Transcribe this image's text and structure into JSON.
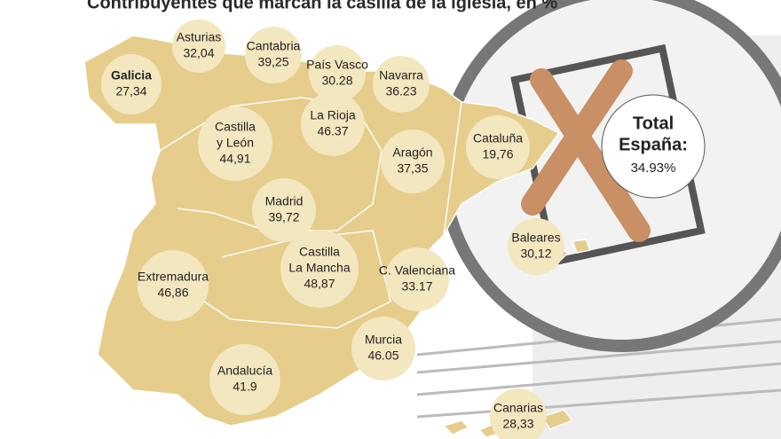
{
  "header": {
    "title": "Contribuyentes que marcan la casilla de la iglesia, en %"
  },
  "regions": [
    {
      "name": [
        "Galicia"
      ],
      "value": "27,34"
    },
    {
      "name": [
        "Asturias"
      ],
      "value": "32,04"
    },
    {
      "name": [
        "Cantabria"
      ],
      "value": "39,25"
    },
    {
      "name": [
        "País Vasco"
      ],
      "value": "30.28"
    },
    {
      "name": [
        "Navarra"
      ],
      "value": "36.23"
    },
    {
      "name": [
        "La Rioja"
      ],
      "value": "46.37"
    },
    {
      "name": [
        "Castilla",
        "y León"
      ],
      "value": "44,91"
    },
    {
      "name": [
        "Aragón"
      ],
      "value": "37,35"
    },
    {
      "name": [
        "Cataluña"
      ],
      "value": "19,76"
    },
    {
      "name": [
        "Madrid"
      ],
      "value": "39,72"
    },
    {
      "name": [
        "Extremadura"
      ],
      "value": "46,86"
    },
    {
      "name": [
        "Castilla",
        "La Mancha"
      ],
      "value": "48,87"
    },
    {
      "name": [
        "C. Valenciana"
      ],
      "value": "33.17"
    },
    {
      "name": [
        "Baleares"
      ],
      "value": "30,12"
    },
    {
      "name": [
        "Murcia"
      ],
      "value": "46.05"
    },
    {
      "name": [
        "Andalucía"
      ],
      "value": "41.9"
    },
    {
      "name": [
        "Canarias"
      ],
      "value": "28,33"
    }
  ],
  "total": {
    "name": [
      "Total",
      "España:"
    ],
    "value": "34.93%"
  }
}
